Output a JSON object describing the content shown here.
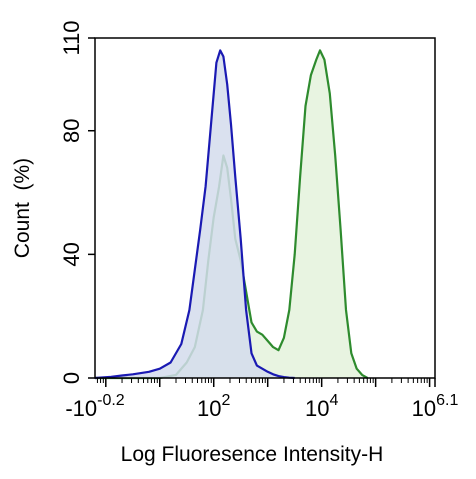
{
  "chart_data": {
    "type": "area",
    "title": "",
    "xlabel": "Log Fluoresence Intensity-H",
    "ylabel": "Count  (%)",
    "x_scale": "log",
    "xlim": [
      -0.2,
      6.1
    ],
    "ylim": [
      0,
      110
    ],
    "y_ticks": [
      0,
      40,
      80,
      110
    ],
    "x_tick_labels": [
      {
        "base": "-10",
        "exp": "-0.2",
        "at": -0.2
      },
      {
        "base": "10",
        "exp": "2",
        "at": 2
      },
      {
        "base": "10",
        "exp": "4",
        "at": 4
      },
      {
        "base": "10",
        "exp": "6.1",
        "at": 6.1
      }
    ],
    "grid": false,
    "legend": "none",
    "series": [
      {
        "color": "#1a1ab3",
        "fill": "#d4dcec",
        "x": [
          -0.2,
          0.1,
          0.3,
          0.5,
          0.8,
          1.0,
          1.2,
          1.4,
          1.55,
          1.65,
          1.75,
          1.85,
          1.95,
          2.05,
          2.12,
          2.18,
          2.25,
          2.32,
          2.4,
          2.5,
          2.6,
          2.7,
          2.8,
          2.9,
          3.0,
          3.1,
          3.2,
          3.3,
          3.4,
          3.5
        ],
        "y": [
          0,
          0.4,
          0.8,
          1.2,
          2,
          3,
          5,
          11,
          22,
          35,
          48,
          62,
          82,
          102,
          106,
          104,
          95,
          82,
          65,
          45,
          22,
          8,
          4,
          3,
          2,
          1.2,
          0.6,
          0.3,
          0.1,
          0
        ]
      },
      {
        "color": "#2e8b2e",
        "fill": "#e4f2dc",
        "x": [
          -0.2,
          0.5,
          1.0,
          1.3,
          1.5,
          1.65,
          1.8,
          1.9,
          2.0,
          2.1,
          2.18,
          2.25,
          2.32,
          2.4,
          2.5,
          2.6,
          2.7,
          2.8,
          2.9,
          3.0,
          3.1,
          3.2,
          3.3,
          3.4,
          3.5,
          3.6,
          3.7,
          3.8,
          3.9,
          3.97,
          4.05,
          4.15,
          4.25,
          4.35,
          4.45,
          4.55,
          4.65,
          4.75,
          4.85
        ],
        "y": [
          0,
          0,
          0,
          1,
          5,
          10,
          22,
          38,
          52,
          62,
          72,
          68,
          58,
          45,
          38,
          28,
          18,
          15,
          14,
          12,
          10,
          9,
          13,
          22,
          40,
          65,
          88,
          98,
          103,
          106,
          103,
          92,
          72,
          48,
          22,
          8,
          3,
          1,
          0
        ]
      }
    ]
  }
}
